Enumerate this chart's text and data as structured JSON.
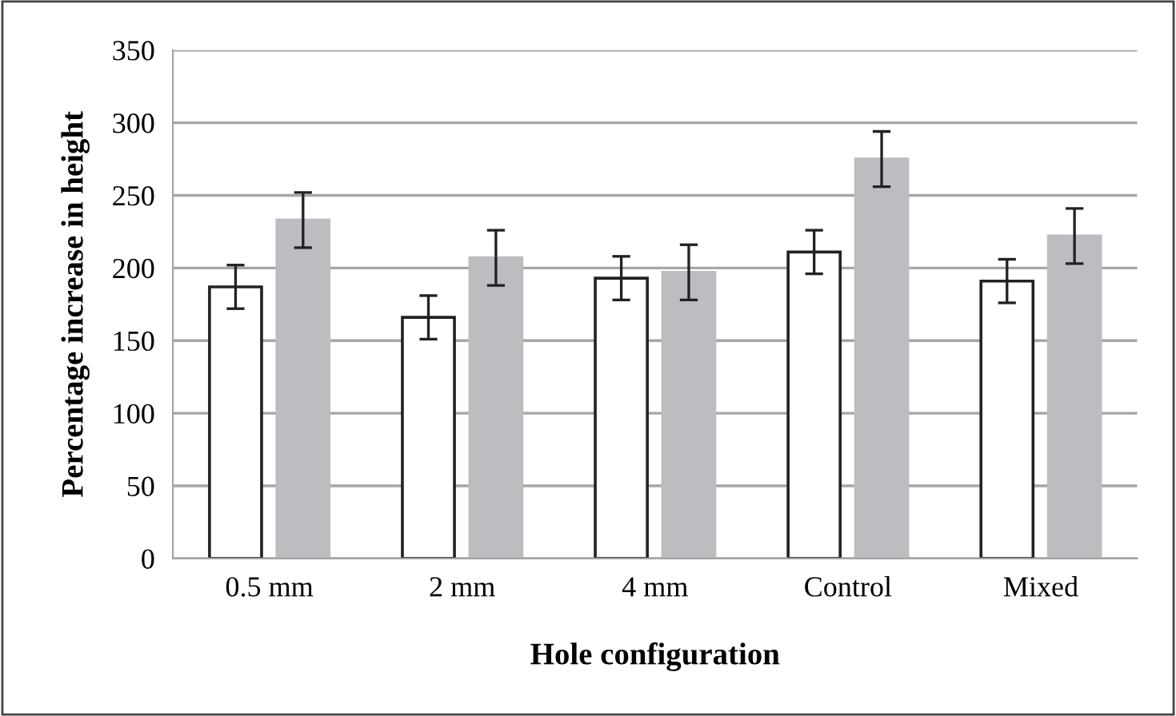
{
  "chart_data": {
    "type": "bar",
    "xlabel": "Hole configuration",
    "ylabel": "Percentage increase in height",
    "categories": [
      "0.5 mm",
      "2 mm",
      "4 mm",
      "Control",
      "Mixed"
    ],
    "series": [
      {
        "color": "#ffffff",
        "values": [
          187,
          166,
          193,
          211,
          191
        ],
        "errors": [
          15,
          15,
          15,
          15,
          15
        ]
      },
      {
        "color": "#bcbdc0",
        "values": [
          233,
          207,
          197,
          275,
          222
        ],
        "errors": [
          19,
          19,
          19,
          19,
          19
        ]
      }
    ],
    "ylim": [
      0,
      350
    ],
    "yticks": [
      0,
      50,
      100,
      150,
      200,
      250,
      300,
      350
    ],
    "grid": "y"
  }
}
